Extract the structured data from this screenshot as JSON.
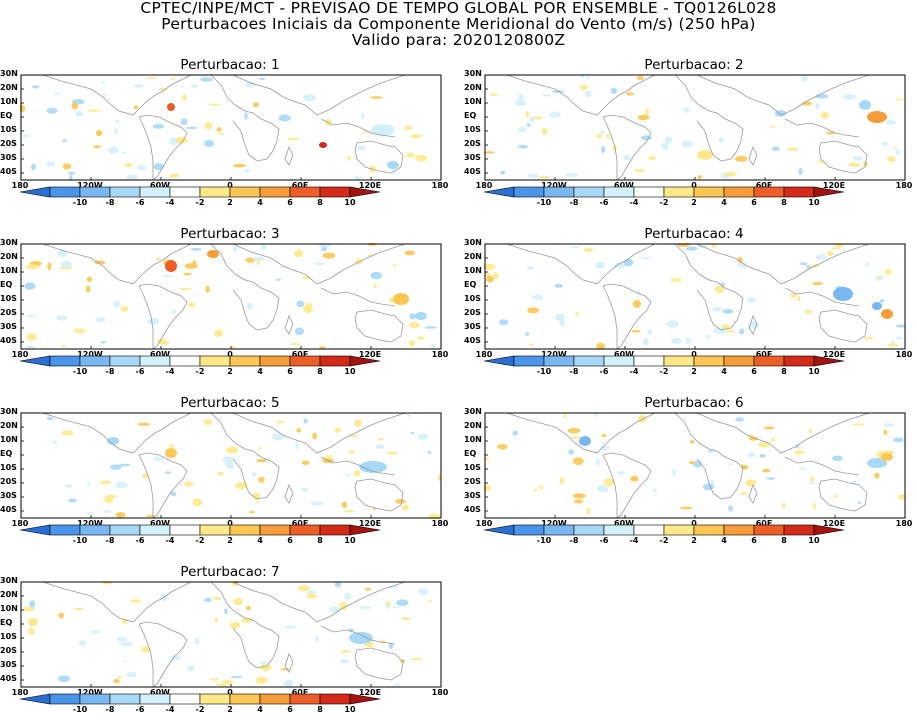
{
  "header": {
    "line1": "CPTEC/INPE/MCT - PREVISAO DE TEMPO GLOBAL POR ENSEMBLE - TQ0126L028",
    "line2": "Perturbacoes Iniciais da Componente Meridional do Vento (m/s) (250 hPa)",
    "line3": "Valido para: 2020120800Z"
  },
  "lat_labels": [
    "30N",
    "20N",
    "10N",
    "EQ",
    "10S",
    "20S",
    "30S",
    "40S"
  ],
  "lon_labels": [
    "180",
    "120W",
    "60W",
    "0",
    "60E",
    "120E",
    "180"
  ],
  "colorbar": {
    "labels": [
      "-10",
      "-8",
      "-6",
      "-4",
      "-2",
      "2",
      "4",
      "6",
      "8",
      "10"
    ],
    "colors": [
      "#2a6fd6",
      "#4a95ea",
      "#78b7f2",
      "#a8d8f7",
      "#d3f1fb",
      "#ffffff",
      "#fde98a",
      "#fbc653",
      "#f79c3a",
      "#ec5d27",
      "#d32a1a",
      "#a31410"
    ]
  },
  "panels": [
    {
      "title": "Perturbacao: 1"
    },
    {
      "title": "Perturbacao: 2"
    },
    {
      "title": "Perturbacao: 3"
    },
    {
      "title": "Perturbacao: 4"
    },
    {
      "title": "Perturbacao: 5"
    },
    {
      "title": "Perturbacao: 6"
    },
    {
      "title": "Perturbacao: 7"
    }
  ]
}
